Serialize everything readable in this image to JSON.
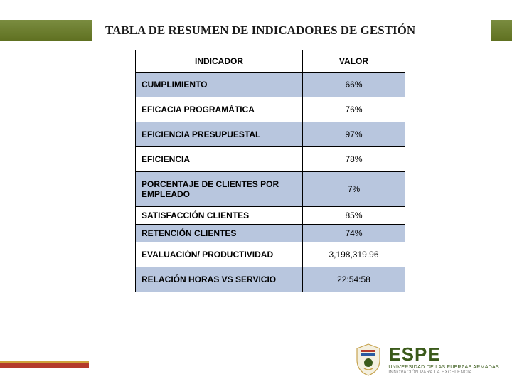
{
  "title": "TABLA DE RESUMEN DE INDICADORES DE GESTIÓN",
  "columns": {
    "indicator": "INDICADOR",
    "value": "VALOR"
  },
  "rows": [
    {
      "indicator": "CUMPLIMIENTO",
      "value": "66%",
      "style": "band"
    },
    {
      "indicator": "EFICACIA PROGRAMÁTICA",
      "value": "76%",
      "style": "plain"
    },
    {
      "indicator": "EFICIENCIA PRESUPUESTAL",
      "value": "97%",
      "style": "band"
    },
    {
      "indicator": "EFICIENCIA",
      "value": "78%",
      "style": "plain"
    },
    {
      "indicator": "PORCENTAJE DE CLIENTES POR EMPLEADO",
      "value": "7%",
      "style": "band"
    },
    {
      "indicator": "SATISFACCIÓN CLIENTES",
      "value": "85%",
      "style": "plain-short"
    },
    {
      "indicator": "RETENCIÓN CLIENTES",
      "value": "74%",
      "style": "band-short"
    },
    {
      "indicator": "EVALUACIÓN/ PRODUCTIVIDAD",
      "value": "3,198,319.96",
      "style": "plain"
    },
    {
      "indicator": "RELACIÓN HORAS VS SERVICIO",
      "value": "22:54:58",
      "style": "band"
    }
  ],
  "logo": {
    "main": "ESPE",
    "sub1": "UNIVERSIDAD DE LAS FUERZAS ARMADAS",
    "sub2": "INNOVACIÓN PARA LA EXCELENCIA"
  },
  "colors": {
    "band_green": "#6a7c30",
    "title_text": "#1a1a1a",
    "cell_band": "#b8c6de",
    "border": "#000000",
    "footer_red": "#b43a2a",
    "footer_gold": "#cfa23a",
    "logo_green": "#3a5a1a"
  }
}
